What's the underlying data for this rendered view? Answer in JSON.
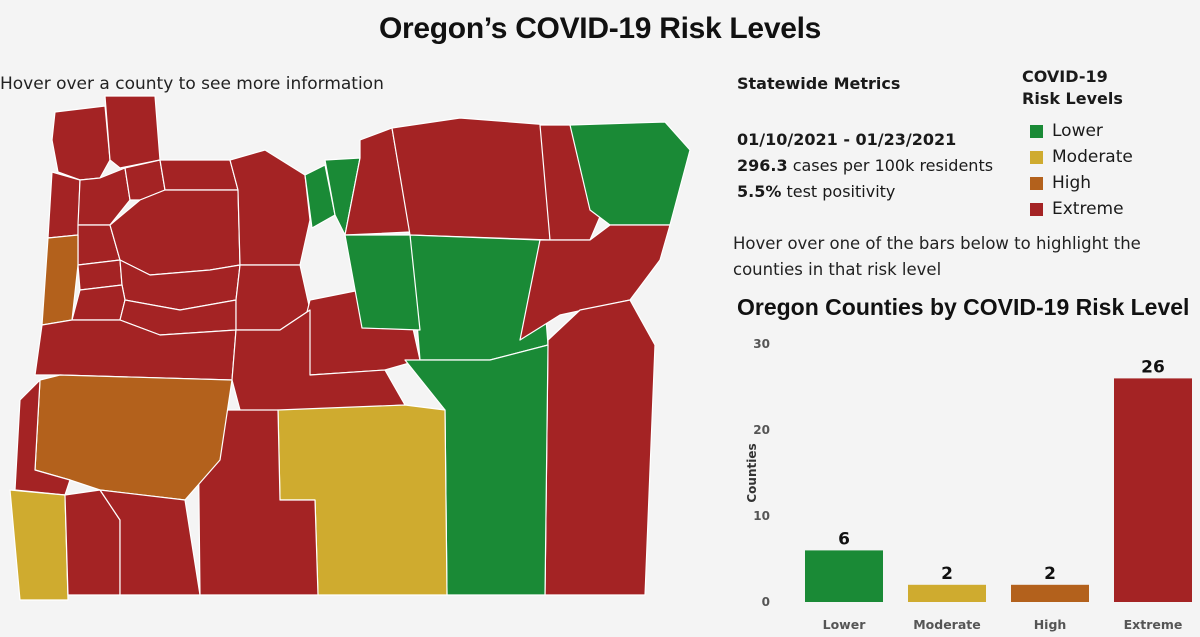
{
  "title": "Oregon’s COVID-19 Risk Levels",
  "map": {
    "instruction": "Hover over a county to see more information",
    "colors": {
      "Lower": "#1a8a36",
      "Moderate": "#cfab2f",
      "High": "#b3611c",
      "Extreme": "#a42324"
    }
  },
  "metrics": {
    "heading": "Statewide Metrics",
    "date_range": "01/10/2021 - 01/23/2021",
    "cases_value": "296.3",
    "cases_label": " cases per 100k residents",
    "positivity_value": "5.5%",
    "positivity_label": " test positivity"
  },
  "legend": {
    "title_line1": "COVID-19",
    "title_line2": "Risk Levels",
    "items": [
      {
        "label": "Lower",
        "color": "#1a8a36"
      },
      {
        "label": "Moderate",
        "color": "#cfab2f"
      },
      {
        "label": "High",
        "color": "#b3611c"
      },
      {
        "label": "Extreme",
        "color": "#a42324"
      }
    ]
  },
  "bars_instruction": "Hover over one of the bars below to highlight the counties in that risk level",
  "chart_data": {
    "type": "bar",
    "title": "Oregon Counties by COVID-19 Risk Level",
    "categories": [
      "Lower",
      "Moderate",
      "High",
      "Extreme"
    ],
    "values": [
      6,
      2,
      2,
      26
    ],
    "colors": [
      "#1a8a36",
      "#cfab2f",
      "#b3611c",
      "#a42324"
    ],
    "ylabel": "Counties",
    "xlabel": "",
    "ylim": [
      0,
      30
    ],
    "yticks": [
      0,
      10,
      20,
      30
    ],
    "grid": false
  }
}
